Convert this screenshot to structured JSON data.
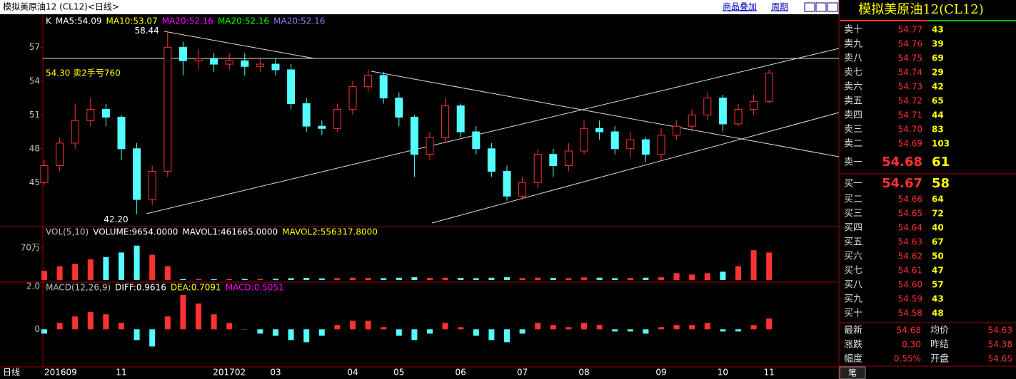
{
  "header": {
    "title": "模拟美原油12 (CL12)<日线>",
    "overlay": "商品叠加",
    "period": "周期",
    "axis_mode": "日线"
  },
  "chart_data": [
    {
      "type": "candlestick",
      "legend": [
        {
          "text": "K",
          "color": "#ffffff"
        },
        {
          "text": "MA5:54.09",
          "color": "#ffffff"
        },
        {
          "text": "MA10:53.07",
          "color": "#ffff00"
        },
        {
          "text": "MA20:52.16",
          "color": "#ff00ff"
        },
        {
          "text": "MA20:52.16",
          "color": "#00ff00"
        },
        {
          "text": "MA20:52.16",
          "color": "#8080ff"
        }
      ],
      "high_label": "58.44",
      "low_label": "42.20",
      "note": "54.30 卖2手亏760",
      "categories": [
        "201609",
        null,
        null,
        null,
        null,
        "11",
        null,
        null,
        null,
        null,
        null,
        null,
        "201702",
        null,
        null,
        "03",
        null,
        null,
        null,
        null,
        "04",
        null,
        null,
        "05",
        null,
        null,
        null,
        "06",
        null,
        null,
        null,
        "07",
        null,
        null,
        null,
        "08",
        null,
        null,
        null,
        null,
        "09",
        null,
        null,
        null,
        "10",
        null,
        null,
        "11"
      ],
      "open": [
        45,
        46.5,
        48.5,
        50.5,
        51.5,
        50.8,
        48,
        43.5,
        46,
        57,
        55.8,
        56,
        55.5,
        55.8,
        55.3,
        55.5,
        55,
        52,
        50,
        49.8,
        51.5,
        53.5,
        54.5,
        52.5,
        50.8,
        47.5,
        49,
        51.8,
        49.5,
        48,
        46,
        43.8,
        45,
        47.5,
        46.5,
        47.8,
        49.8,
        49.5,
        48,
        48.8,
        47.5,
        49.2,
        50,
        51,
        52.5,
        50.2,
        51.5,
        52.2
      ],
      "high": [
        47,
        49,
        52,
        52.5,
        52,
        51,
        48.5,
        46.5,
        58.44,
        57.5,
        56.8,
        56.5,
        56.5,
        56.5,
        56,
        56,
        55.5,
        52.5,
        50.5,
        52,
        54,
        55,
        54.8,
        53,
        51,
        49.5,
        52.5,
        52,
        50,
        48.5,
        46.5,
        45.5,
        48,
        48,
        48.5,
        50.5,
        50.5,
        50,
        49.5,
        49,
        49.8,
        50.5,
        51.5,
        53,
        52.8,
        52,
        52.8,
        55
      ],
      "low": [
        44.8,
        46,
        48,
        50,
        50,
        47,
        42.2,
        43,
        45.5,
        54.5,
        55,
        54.8,
        55,
        54.5,
        54.8,
        54.5,
        51.5,
        49.5,
        49.2,
        49.5,
        51,
        53,
        52,
        50,
        45.5,
        47,
        48.5,
        49,
        47.5,
        45.5,
        43.4,
        43.5,
        44.5,
        45.5,
        46,
        47.5,
        48.8,
        47.5,
        47.2,
        46.8,
        47,
        48.8,
        49.5,
        50.5,
        49.5,
        50,
        51,
        52
      ],
      "close": [
        46.5,
        48.5,
        50.5,
        51.5,
        50.8,
        48,
        43.5,
        46,
        57,
        55.8,
        56,
        55.5,
        55.8,
        55.3,
        55.5,
        55,
        52,
        50,
        49.8,
        51.5,
        53.5,
        54.5,
        52.5,
        50.8,
        47.5,
        49,
        51.8,
        49.5,
        48,
        46,
        43.8,
        45,
        47.5,
        46.5,
        47.8,
        49.8,
        49.5,
        48,
        48.8,
        47.5,
        49.2,
        50,
        51,
        52.5,
        50.2,
        51.5,
        52.2,
        54.7
      ],
      "up_color": "#ff3232",
      "down_color": "#54ffff",
      "ylim": [
        41.1,
        59.8
      ],
      "yticks": [
        45,
        48,
        51,
        54,
        57
      ]
    },
    {
      "type": "bar",
      "legend": [
        {
          "text": "VOL(5,10)",
          "color": "#c0c0c0"
        },
        {
          "text": "VOLUME:9654.0000",
          "color": "#ffffff"
        },
        {
          "text": "MAVOL1:461665.0000",
          "color": "#ffffff"
        },
        {
          "text": "MAVOL2:556317.8000",
          "color": "#ffff00"
        }
      ],
      "values": [
        200000,
        300000,
        350000,
        450000,
        500000,
        600000,
        750000,
        550000,
        300000,
        20000,
        20000,
        18000,
        20000,
        22000,
        20000,
        25000,
        40000,
        45000,
        35000,
        40000,
        50000,
        45000,
        40000,
        50000,
        60000,
        45000,
        50000,
        45000,
        40000,
        50000,
        60000,
        40000,
        50000,
        45000,
        40000,
        55000,
        50000,
        40000,
        45000,
        50000,
        60000,
        150000,
        120000,
        150000,
        180000,
        300000,
        650000,
        600000
      ],
      "ylim": [
        0,
        1166667
      ],
      "yticks": [
        {
          "value": 700000,
          "label": "70万"
        }
      ]
    },
    {
      "type": "bar",
      "legend": [
        {
          "text": "MACD(12,26,9)",
          "color": "#c0c0c0"
        },
        {
          "text": "DIFF:0.9616",
          "color": "#ffffff"
        },
        {
          "text": "DEA:0.7091",
          "color": "#ffff00"
        },
        {
          "text": "MACD:0.5051",
          "color": "#ff00ff"
        }
      ],
      "values": [
        -0.2,
        0.3,
        0.6,
        0.8,
        0.7,
        0.3,
        -0.5,
        -0.8,
        0.6,
        1.6,
        1.2,
        0.7,
        0.3,
        0,
        -0.2,
        -0.3,
        -0.5,
        -0.6,
        -0.3,
        0.2,
        0.4,
        0.4,
        0.1,
        -0.3,
        -0.5,
        -0.2,
        0.3,
        0.1,
        -0.3,
        -0.5,
        -0.6,
        -0.2,
        0.3,
        0.2,
        0.1,
        0.3,
        0.2,
        -0.1,
        -0.1,
        -0.2,
        0.1,
        0.2,
        0.2,
        0.3,
        -0.1,
        -0.1,
        0.2,
        0.5
      ],
      "ylim": [
        -1.75,
        2.2
      ],
      "yticks": [
        0,
        {
          "value": 2,
          "label": "2.0"
        }
      ]
    }
  ],
  "order_book": {
    "title": "模拟美原油12(CL12)",
    "asks": [
      [
        "卖十",
        "54.77",
        "43"
      ],
      [
        "卖九",
        "54.76",
        "39"
      ],
      [
        "卖八",
        "54.75",
        "69"
      ],
      [
        "卖七",
        "54.74",
        "29"
      ],
      [
        "卖六",
        "54.73",
        "42"
      ],
      [
        "卖五",
        "54.72",
        "65"
      ],
      [
        "卖四",
        "54.71",
        "44"
      ],
      [
        "卖三",
        "54.70",
        "83"
      ],
      [
        "卖二",
        "54.69",
        "103"
      ],
      [
        "卖一",
        "54.68",
        "61"
      ]
    ],
    "bids": [
      [
        "买一",
        "54.67",
        "58"
      ],
      [
        "买二",
        "54.66",
        "64"
      ],
      [
        "买三",
        "54.65",
        "72"
      ],
      [
        "买四",
        "54.64",
        "40"
      ],
      [
        "买五",
        "54.63",
        "67"
      ],
      [
        "买六",
        "54.62",
        "50"
      ],
      [
        "买七",
        "54.61",
        "47"
      ],
      [
        "买八",
        "54.60",
        "57"
      ],
      [
        "买九",
        "54.59",
        "43"
      ],
      [
        "买十",
        "54.58",
        "48"
      ]
    ]
  },
  "quote": [
    [
      "最新",
      "54.68",
      "均价",
      "54.63"
    ],
    [
      "涨跌",
      "0.30",
      "昨结",
      "54.38"
    ],
    [
      "幅度",
      "0.55%",
      "开盘",
      "54.65"
    ]
  ],
  "tab": "笔"
}
